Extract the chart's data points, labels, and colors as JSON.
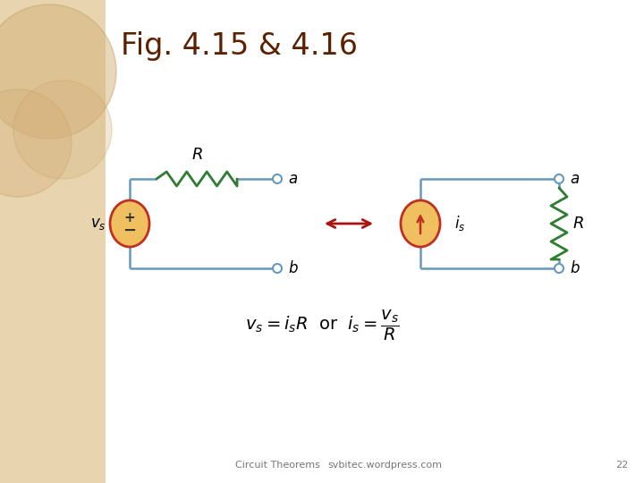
{
  "title": "Fig. 4.15 & 4.16",
  "title_color": "#5C2000",
  "title_fontsize": 24,
  "bg_color": "#FFFFFF",
  "slide_bg": "#E8D5B0",
  "wire_color": "#6699BB",
  "resistor_color": "#2E7D32",
  "source_fill": "#F0C060",
  "source_edge": "#C03020",
  "arrow_color": "#AA1111",
  "terminal_color": "#6699BB",
  "label_color": "#000000",
  "footer_text1": "Circuit Theorems",
  "footer_text2": "svbitec.wordpress.com",
  "footer_num": "22"
}
